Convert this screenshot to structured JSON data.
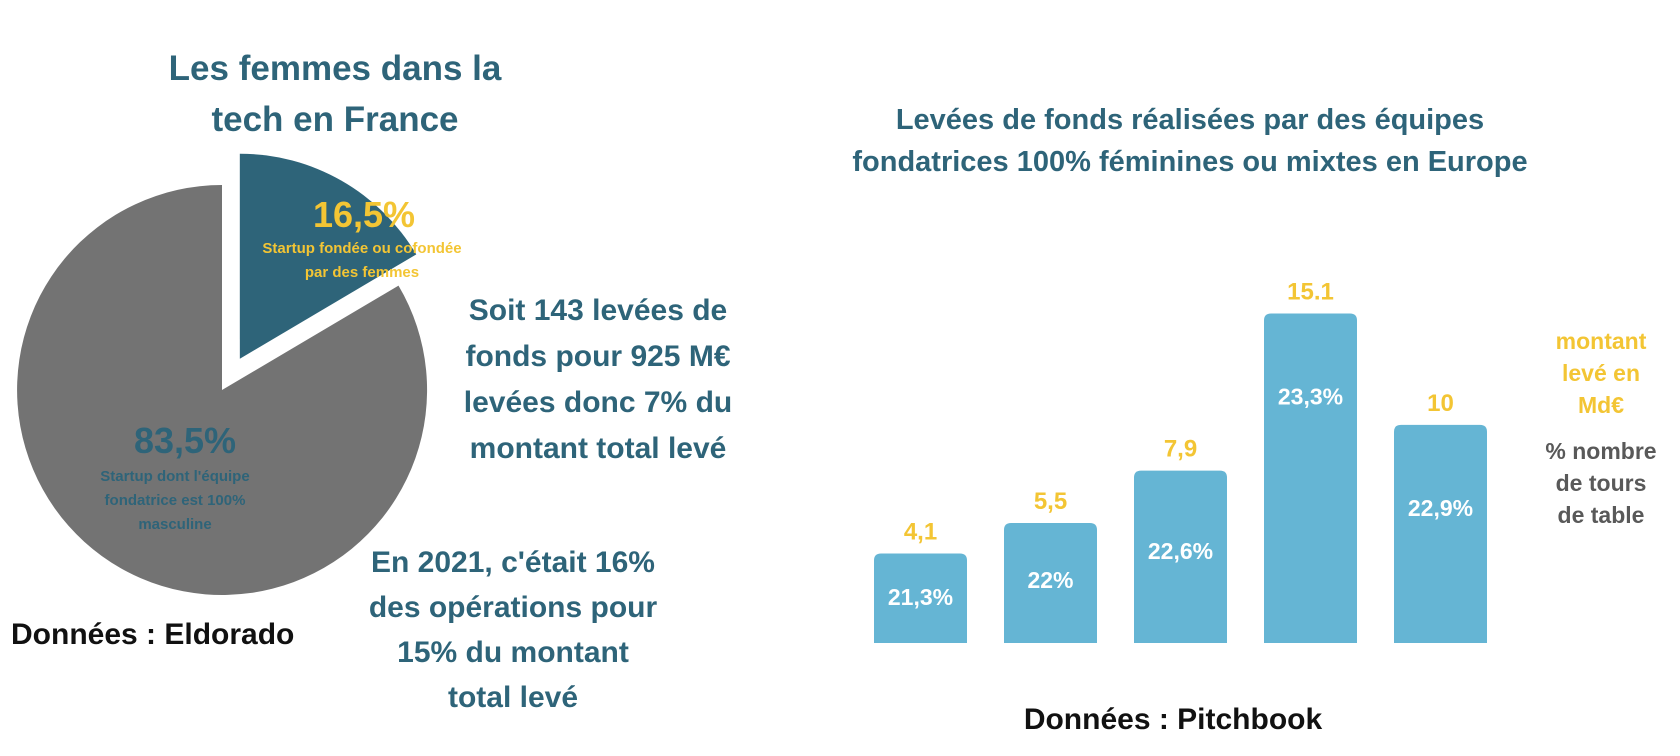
{
  "colors": {
    "teal_dark": "#2e6479",
    "gray": "#737373",
    "bar_blue": "#65b5d4",
    "yellow": "#f3c534",
    "label_gray": "#595959",
    "black": "#111111",
    "white": "#ffffff"
  },
  "left_panel": {
    "title_line1": "Les femmes dans la",
    "title_line2": "tech en France",
    "note1": [
      "Soit 143 levées de",
      "fonds pour 925 M€",
      "levées donc 7% du",
      "montant total levé"
    ],
    "note2": [
      "En 2021, c'était 16%",
      "des opérations pour",
      "15% du montant",
      "total levé"
    ],
    "source": "Données : Eldorado"
  },
  "right_panel": {
    "title_line1": "Levées de fonds réalisées par des équipes",
    "title_line2": "fondatrices 100% féminines ou mixtes en Europe",
    "legend_amount": [
      "montant",
      "levé en",
      "Md€"
    ],
    "legend_pct": [
      "% nombre",
      "de tours",
      "de table"
    ],
    "source": "Données : Pitchbook"
  },
  "chart_data": [
    {
      "type": "pie",
      "title": "Les femmes dans la tech en France",
      "slices": [
        {
          "name": "women",
          "value": 16.5,
          "value_label": "16,5%",
          "label": "Startup fondée ou cofondée par des femmes",
          "label_lines": [
            "Startup fondée ou cofondée",
            "par des femmes"
          ],
          "exploded": true,
          "color": "#2e6479"
        },
        {
          "name": "men",
          "value": 83.5,
          "value_label": "83,5%",
          "label": "Startup dont l'équipe fondatrice est 100% masculine",
          "label_lines": [
            "Startup dont l'équipe",
            "fondatrice est 100%",
            "masculine"
          ],
          "exploded": false,
          "color": "#737373"
        }
      ]
    },
    {
      "type": "bar",
      "title": "Levées de fonds réalisées par des équipes fondatrices 100% féminines ou mixtes en Europe",
      "categories": [
        "",
        "",
        "",
        "",
        ""
      ],
      "series": [
        {
          "name": "montant levé en Md€",
          "values": [
            4.1,
            5.5,
            7.9,
            15.1,
            10
          ],
          "labels": [
            "4,1",
            "5,5",
            "7,9",
            "15.1",
            "10"
          ]
        },
        {
          "name": "% nombre de tours de table",
          "values": [
            21.3,
            22,
            22.6,
            23.3,
            22.9
          ],
          "labels": [
            "21,3%",
            "22%",
            "22,6%",
            "23,3%",
            "22,9%"
          ]
        }
      ],
      "ylim": [
        0,
        16
      ]
    }
  ]
}
